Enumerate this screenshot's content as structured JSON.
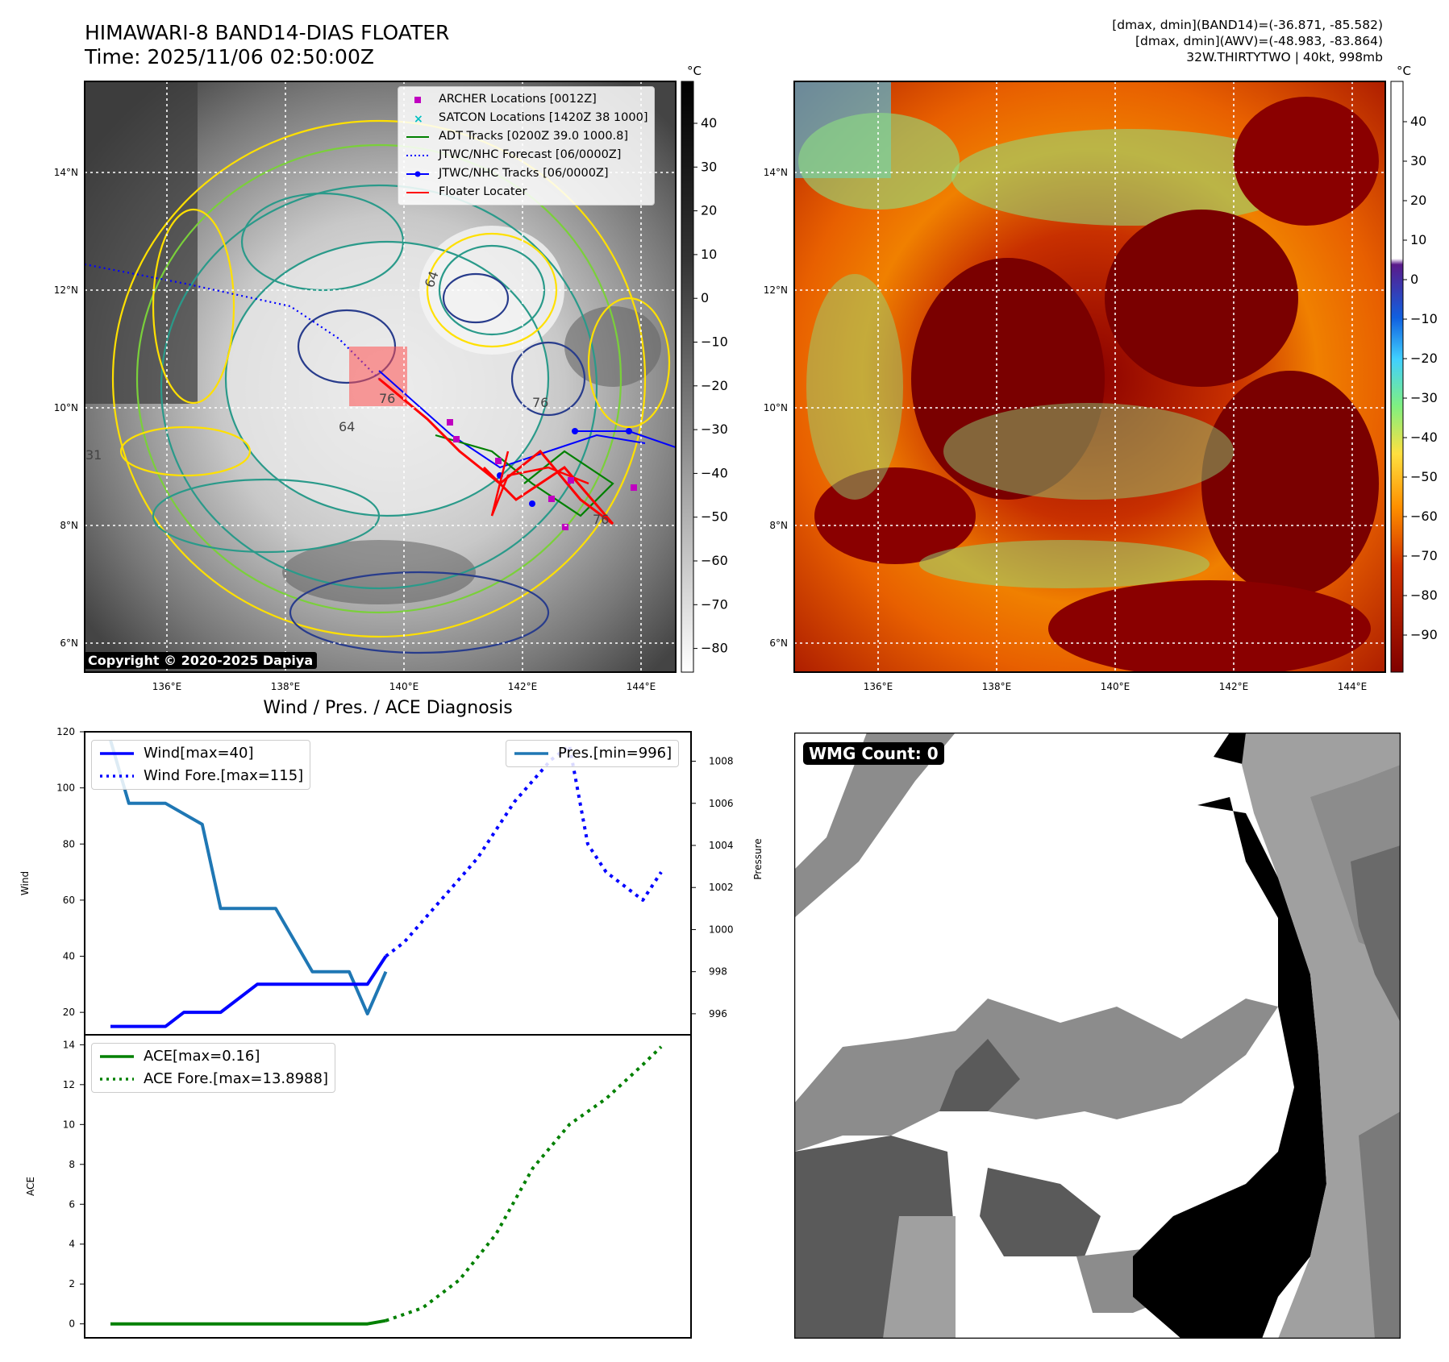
{
  "header": {
    "title_line1": "HIMAWARI-8 BAND14-DIAS FLOATER",
    "title_line2": "Time: 2025/11/06 02:50:00Z",
    "right_line1": "[dmax, dmin](BAND14)=(-36.871, -85.582)",
    "right_line2": "[dmax, dmin](AWV)=(-48.983, -83.864)",
    "right_line3": "32W.THIRTYTWO | 40kt, 998mb"
  },
  "map": {
    "lat_labels": [
      "14°N",
      "12°N",
      "10°N",
      "8°N",
      "6°N"
    ],
    "lon_labels": [
      "136°E",
      "138°E",
      "140°E",
      "142°E",
      "144°E"
    ],
    "copyright": "Copyright © 2020-2025 Dapiya",
    "colorbar_unit": "°C",
    "left_colorbar_ticks": [
      "40",
      "30",
      "20",
      "10",
      "0",
      "−10",
      "−20",
      "−30",
      "−40",
      "−50",
      "−60",
      "−70",
      "−80"
    ],
    "right_colorbar_ticks": [
      "40",
      "30",
      "20",
      "10",
      "0",
      "−10",
      "−20",
      "−30",
      "−40",
      "−50",
      "−60",
      "−70",
      "−80",
      "−90"
    ],
    "legend": [
      {
        "label": "ARCHER Locations [0012Z]",
        "color": "#c000c0",
        "style": "square"
      },
      {
        "label": "SATCON Locations [1420Z 38 1000]",
        "color": "#00c0c0",
        "style": "x"
      },
      {
        "label": "ADT Tracks [0200Z 39.0 1000.8]",
        "color": "#008000",
        "style": "line"
      },
      {
        "label": "JTWC/NHC Forecast [06/0000Z]",
        "color": "#0000ff",
        "style": "dotted"
      },
      {
        "label": "JTWC/NHC Tracks [06/0000Z]",
        "color": "#0000ff",
        "style": "line-dot"
      },
      {
        "label": "Floater Locater",
        "color": "#ff0000",
        "style": "line"
      }
    ],
    "contour_labels": [
      "64",
      "76",
      "76",
      "64",
      "76",
      "31"
    ]
  },
  "wmg": {
    "label": "WMG Count: 0"
  },
  "chart_data": [
    {
      "type": "line",
      "title": "Wind / Pres. / ACE Diagnosis",
      "ylabel": "Wind",
      "ylabel_right": "Pressure",
      "ylim": [
        12,
        120
      ],
      "ylim_right": [
        995.0,
        1009.4
      ],
      "yticks": [
        "120",
        "100",
        "80",
        "60",
        "40",
        "20"
      ],
      "yticks_right": [
        "1008",
        "1006",
        "1004",
        "1002",
        "1000",
        "998",
        "996"
      ],
      "x_count": 31,
      "series": [
        {
          "name": "Wind[max=40]",
          "color": "#0000ff",
          "style": "solid",
          "x": [
            0,
            3,
            4,
            6,
            8,
            10,
            11,
            12,
            13,
            14,
            15
          ],
          "values": [
            15,
            15,
            20,
            20,
            30,
            30,
            30,
            30,
            30,
            30,
            40
          ]
        },
        {
          "name": "Wind Fore.[max=115]",
          "color": "#0000ff",
          "style": "dotted",
          "x": [
            15,
            16,
            18,
            20,
            22,
            24,
            25,
            26,
            27,
            28,
            29,
            30
          ],
          "values": [
            40,
            45,
            60,
            75,
            95,
            110,
            115,
            80,
            70,
            65,
            60,
            70
          ]
        },
        {
          "name": "Pres.[min=996]",
          "color": "#1f77b4",
          "style": "solid",
          "axis": "right",
          "x": [
            0,
            1,
            3,
            5,
            6,
            7,
            9,
            11,
            13,
            14,
            15
          ],
          "values": [
            1009,
            1006,
            1006,
            1005,
            1001,
            1001,
            1001,
            998,
            998,
            996,
            998
          ]
        }
      ]
    },
    {
      "type": "line",
      "ylabel": "ACE",
      "ylim": [
        -0.7,
        14.5
      ],
      "yticks": [
        "14",
        "12",
        "10",
        "8",
        "6",
        "4",
        "2",
        "0"
      ],
      "x_count": 31,
      "series": [
        {
          "name": "ACE[max=0.16]",
          "color": "#008000",
          "style": "solid",
          "x": [
            0,
            4,
            8,
            12,
            14,
            15
          ],
          "values": [
            0,
            0,
            0,
            0,
            0,
            0.16
          ]
        },
        {
          "name": "ACE Fore.[max=13.8988]",
          "color": "#008000",
          "style": "dotted",
          "x": [
            15,
            17,
            19,
            21,
            23,
            25,
            27,
            29,
            30
          ],
          "values": [
            0.16,
            0.8,
            2.2,
            4.5,
            7.8,
            10.0,
            11.3,
            13.0,
            13.9
          ]
        }
      ]
    }
  ]
}
